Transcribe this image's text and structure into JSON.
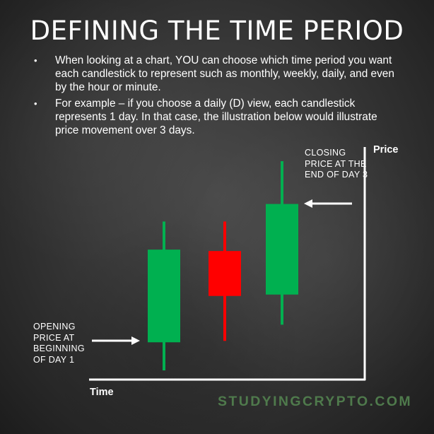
{
  "title": "DEFINING THE TIME PERIOD",
  "bullets": [
    "When looking at a chart, YOU can choose which time period you want each candlestick to represent such as monthly, weekly, daily, and even by the hour or minute.",
    "For example – if you choose a daily (D) view, each candlestick represents 1 day. In that case, the illustration below would illustrate price movement over 3 days."
  ],
  "axes": {
    "y_label": "Price",
    "x_label": "Time"
  },
  "annotations": {
    "closing": "CLOSING PRICE AT THE END OF DAY 3",
    "opening": "OPENING PRICE AT BEGINNING OF DAY 1"
  },
  "candles": [
    {
      "open": 40,
      "close": 172,
      "high": 212,
      "low": 0,
      "color": "#00b050"
    },
    {
      "open": 170,
      "close": 106,
      "high": 212,
      "low": 42,
      "color": "#ff0000"
    },
    {
      "open": 108,
      "close": 237,
      "high": 298,
      "low": 65,
      "color": "#00b050"
    }
  ],
  "price_max": 300,
  "brand": "STUDYINGCRYPTO.COM"
}
